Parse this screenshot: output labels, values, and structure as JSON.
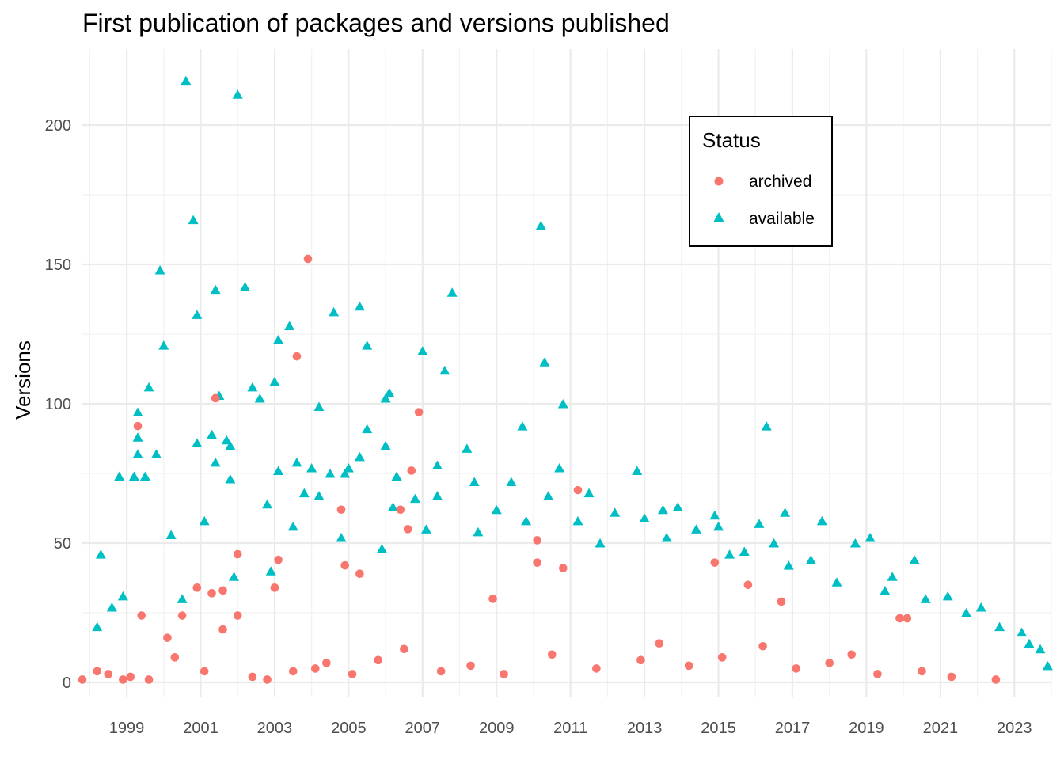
{
  "chart_data": {
    "type": "scatter",
    "title": "First publication of packages and versions published",
    "xlabel": "",
    "ylabel": "Versions",
    "xlim": [
      1997.8,
      2024.0
    ],
    "ylim": [
      0,
      220
    ],
    "x_ticks": [
      "1999",
      "2001",
      "2003",
      "2005",
      "2007",
      "2009",
      "2011",
      "2013",
      "2015",
      "2017",
      "2019",
      "2021",
      "2023"
    ],
    "y_ticks": [
      "0",
      "50",
      "100",
      "150",
      "200"
    ],
    "grid": true,
    "legend": {
      "title": "Status",
      "position": "top-right",
      "entries": [
        {
          "label": "archived",
          "color": "#F8766D",
          "shape": "circle"
        },
        {
          "label": "available",
          "color": "#00BFC4",
          "shape": "triangle"
        }
      ]
    },
    "series": [
      {
        "name": "available",
        "color": "#00BFC4",
        "shape": "triangle",
        "points": [
          [
            2000.6,
            216
          ],
          [
            2002.0,
            211
          ],
          [
            2000.8,
            166
          ],
          [
            2010.2,
            164
          ],
          [
            1999.9,
            148
          ],
          [
            2002.2,
            142
          ],
          [
            2001.4,
            141
          ],
          [
            2007.8,
            140
          ],
          [
            2005.3,
            135
          ],
          [
            2004.6,
            133
          ],
          [
            2000.9,
            132
          ],
          [
            2003.4,
            128
          ],
          [
            2003.1,
            123
          ],
          [
            2000.0,
            121
          ],
          [
            2005.5,
            121
          ],
          [
            2007.0,
            119
          ],
          [
            2010.3,
            115
          ],
          [
            2007.6,
            112
          ],
          [
            2003.0,
            108
          ],
          [
            1999.6,
            106
          ],
          [
            2002.4,
            106
          ],
          [
            2001.5,
            103
          ],
          [
            2006.1,
            104
          ],
          [
            2006.0,
            102
          ],
          [
            2002.6,
            102
          ],
          [
            2010.8,
            100
          ],
          [
            2004.2,
            99
          ],
          [
            1999.3,
            97
          ],
          [
            2009.7,
            92
          ],
          [
            2016.3,
            92
          ],
          [
            2005.5,
            91
          ],
          [
            2001.3,
            89
          ],
          [
            1999.3,
            88
          ],
          [
            2001.7,
            87
          ],
          [
            2000.9,
            86
          ],
          [
            2001.8,
            85
          ],
          [
            2006.0,
            85
          ],
          [
            2008.2,
            84
          ],
          [
            1999.8,
            82
          ],
          [
            1999.3,
            82
          ],
          [
            2005.3,
            81
          ],
          [
            2001.4,
            79
          ],
          [
            2003.6,
            79
          ],
          [
            2007.4,
            78
          ],
          [
            2010.7,
            77
          ],
          [
            2004.0,
            77
          ],
          [
            2003.1,
            76
          ],
          [
            2012.8,
            76
          ],
          [
            2005.0,
            77
          ],
          [
            2006.3,
            74
          ],
          [
            1998.8,
            74
          ],
          [
            1999.2,
            74
          ],
          [
            1999.5,
            74
          ],
          [
            2004.5,
            75
          ],
          [
            2004.9,
            75
          ],
          [
            2008.4,
            72
          ],
          [
            2001.8,
            73
          ],
          [
            2009.4,
            72
          ],
          [
            2011.5,
            68
          ],
          [
            2003.8,
            68
          ],
          [
            2004.2,
            67
          ],
          [
            2006.8,
            66
          ],
          [
            2010.4,
            67
          ],
          [
            2007.4,
            67
          ],
          [
            2002.8,
            64
          ],
          [
            2006.2,
            63
          ],
          [
            2013.5,
            62
          ],
          [
            2013.9,
            63
          ],
          [
            2016.8,
            61
          ],
          [
            2009.0,
            62
          ],
          [
            2012.2,
            61
          ],
          [
            2013.0,
            59
          ],
          [
            2014.9,
            60
          ],
          [
            2001.1,
            58
          ],
          [
            2017.8,
            58
          ],
          [
            2000.2,
            53
          ],
          [
            2015.0,
            56
          ],
          [
            2016.1,
            57
          ],
          [
            1998.3,
            46
          ],
          [
            2018.7,
            50
          ],
          [
            2019.1,
            52
          ],
          [
            2020.3,
            44
          ],
          [
            2015.7,
            47
          ],
          [
            2003.5,
            56
          ],
          [
            2007.1,
            55
          ],
          [
            2011.2,
            58
          ],
          [
            2016.5,
            50
          ],
          [
            2017.5,
            44
          ],
          [
            2019.7,
            38
          ],
          [
            2021.2,
            31
          ],
          [
            2022.1,
            27
          ],
          [
            2023.2,
            18
          ],
          [
            2023.7,
            12
          ],
          [
            1998.2,
            20
          ],
          [
            1998.6,
            27
          ],
          [
            1998.9,
            31
          ],
          [
            2000.5,
            30
          ],
          [
            2001.9,
            38
          ],
          [
            2002.9,
            40
          ],
          [
            2004.8,
            52
          ],
          [
            2005.9,
            48
          ],
          [
            2008.5,
            54
          ],
          [
            2009.8,
            58
          ],
          [
            2011.8,
            50
          ],
          [
            2013.6,
            52
          ],
          [
            2014.4,
            55
          ],
          [
            2015.3,
            46
          ],
          [
            2016.9,
            42
          ],
          [
            2018.2,
            36
          ],
          [
            2019.5,
            33
          ],
          [
            2020.6,
            30
          ],
          [
            2021.7,
            25
          ],
          [
            2022.6,
            20
          ],
          [
            2023.4,
            14
          ],
          [
            2023.9,
            6
          ]
        ]
      },
      {
        "name": "archived",
        "color": "#F8766D",
        "shape": "circle",
        "points": [
          [
            2003.9,
            152
          ],
          [
            2003.6,
            117
          ],
          [
            2001.4,
            102
          ],
          [
            2006.9,
            97
          ],
          [
            1999.3,
            92
          ],
          [
            2006.7,
            76
          ],
          [
            2011.2,
            69
          ],
          [
            2004.8,
            62
          ],
          [
            2006.4,
            62
          ],
          [
            2006.6,
            55
          ],
          [
            2010.1,
            51
          ],
          [
            2002.0,
            46
          ],
          [
            2003.1,
            44
          ],
          [
            2010.1,
            43
          ],
          [
            2014.9,
            43
          ],
          [
            2004.9,
            42
          ],
          [
            2010.8,
            41
          ],
          [
            2005.3,
            39
          ],
          [
            2000.9,
            34
          ],
          [
            2003.0,
            34
          ],
          [
            2001.6,
            33
          ],
          [
            2001.3,
            32
          ],
          [
            2015.8,
            35
          ],
          [
            2016.7,
            29
          ],
          [
            2008.9,
            30
          ],
          [
            1999.4,
            24
          ],
          [
            2000.5,
            24
          ],
          [
            2001.6,
            19
          ],
          [
            2002.0,
            24
          ],
          [
            2019.9,
            23
          ],
          [
            2020.1,
            23
          ],
          [
            1997.8,
            1
          ],
          [
            1998.2,
            4
          ],
          [
            1998.5,
            3
          ],
          [
            1998.9,
            1
          ],
          [
            1999.1,
            2
          ],
          [
            1999.6,
            1
          ],
          [
            2000.1,
            16
          ],
          [
            2000.3,
            9
          ],
          [
            2001.1,
            4
          ],
          [
            2002.4,
            2
          ],
          [
            2002.8,
            1
          ],
          [
            2003.5,
            4
          ],
          [
            2004.1,
            5
          ],
          [
            2004.4,
            7
          ],
          [
            2005.1,
            3
          ],
          [
            2005.8,
            8
          ],
          [
            2006.5,
            12
          ],
          [
            2007.5,
            4
          ],
          [
            2008.3,
            6
          ],
          [
            2009.2,
            3
          ],
          [
            2010.5,
            10
          ],
          [
            2011.7,
            5
          ],
          [
            2012.9,
            8
          ],
          [
            2013.4,
            14
          ],
          [
            2014.2,
            6
          ],
          [
            2015.1,
            9
          ],
          [
            2016.2,
            13
          ],
          [
            2017.1,
            5
          ],
          [
            2018.0,
            7
          ],
          [
            2018.6,
            10
          ],
          [
            2019.3,
            3
          ],
          [
            2020.5,
            4
          ],
          [
            2021.3,
            2
          ],
          [
            2022.5,
            1
          ]
        ]
      }
    ]
  }
}
